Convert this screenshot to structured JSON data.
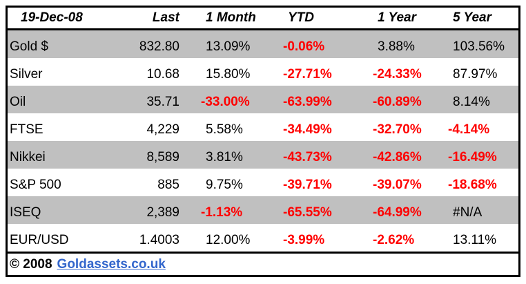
{
  "chart_data": {
    "type": "table",
    "date_header": "19-Dec-08",
    "columns": [
      "Last",
      "1 Month",
      "YTD",
      "1 Year",
      "5 Year"
    ],
    "rows": [
      {
        "label": "Gold $",
        "last": "832.80",
        "m1": "13.09%",
        "ytd": "-0.06%",
        "y1": "3.88%",
        "y5": "103.56%"
      },
      {
        "label": "Silver",
        "last": "10.68",
        "m1": "15.80%",
        "ytd": "-27.71%",
        "y1": "-24.33%",
        "y5": "87.97%"
      },
      {
        "label": "Oil",
        "last": "35.71",
        "m1": "-33.00%",
        "ytd": "-63.99%",
        "y1": "-60.89%",
        "y5": "8.14%"
      },
      {
        "label": "FTSE",
        "last": "4,229",
        "m1": "5.58%",
        "ytd": "-34.49%",
        "y1": "-32.70%",
        "y5": "-4.14%"
      },
      {
        "label": "Nikkei",
        "last": "8,589",
        "m1": "3.81%",
        "ytd": "-43.73%",
        "y1": "-42.86%",
        "y5": "-16.49%"
      },
      {
        "label": "S&P 500",
        "last": "885",
        "m1": "9.75%",
        "ytd": "-39.71%",
        "y1": "-39.07%",
        "y5": "-18.68%"
      },
      {
        "label": "ISEQ",
        "last": "2,389",
        "m1": "-1.13%",
        "ytd": "-65.55%",
        "y1": "-64.99%",
        "y5": "#N/A"
      },
      {
        "label": "EUR/USD",
        "last": "1.4003",
        "m1": "12.00%",
        "ytd": "-3.99%",
        "y1": "-2.62%",
        "y5": "13.11%"
      }
    ]
  },
  "footer": {
    "copyright": "© 2008",
    "link_label": "Goldassets.co.uk"
  },
  "colors": {
    "negative_value": "#FF0000",
    "value_text": "#000000",
    "shaded_row": "#C0C0C0",
    "link": "#3366CC",
    "border": "#000000"
  }
}
